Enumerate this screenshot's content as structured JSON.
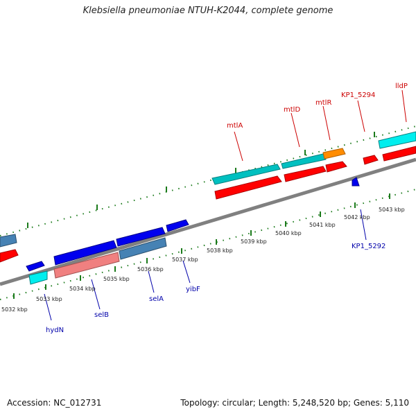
{
  "header": {
    "title": "Klebsiella pneumoniae NTUH-K2044, complete genome"
  },
  "footer": {
    "accession": "Accession: NC_012731",
    "topology": "Topology: circular; Length: 5,248,520 bp; Genes: 5,110"
  },
  "colors": {
    "backbone": "#808080",
    "tick": "#1a7a1a",
    "red_gene": "#ff0000",
    "blue_gene": "#0000ee",
    "cyan_gene": "#00cccc",
    "steel_gene": "#4682b4",
    "salmon_gene": "#f08080",
    "orange_gene": "#ff8c00",
    "top_label": "#cc0000",
    "bottom_label": "#0000aa"
  },
  "scale_labels": [
    "5032 kbp",
    "5033 kbp",
    "5034 kbp",
    "5035 kbp",
    "5036 kbp",
    "5037 kbp",
    "5038 kbp",
    "5039 kbp",
    "5040 kbp",
    "5041 kbp",
    "5042 kbp",
    "5043 kbp"
  ],
  "top_gene_labels": [
    "mtlA",
    "mtlD",
    "mtlR",
    "KP1_5294",
    "lldP"
  ],
  "bottom_gene_labels": [
    "hydN",
    "selB",
    "selA",
    "yibF",
    "KP1_5292"
  ]
}
